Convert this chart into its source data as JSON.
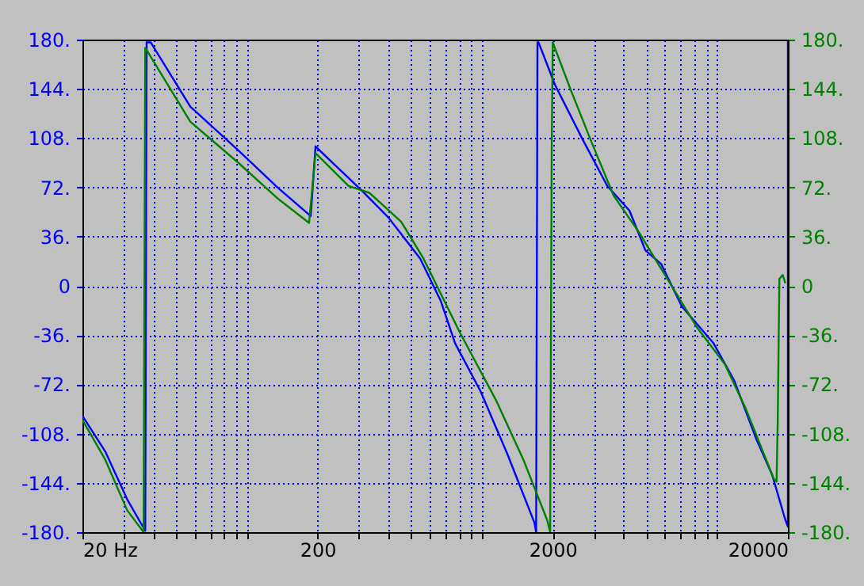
{
  "chart_data": {
    "type": "line",
    "xlim": [
      20,
      20000
    ],
    "xticks": [
      {
        "value": 20,
        "label": "20 Hz"
      },
      {
        "value": 30,
        "label": null
      },
      {
        "value": 40,
        "label": null
      },
      {
        "value": 50,
        "label": null
      },
      {
        "value": 60,
        "label": null
      },
      {
        "value": 70,
        "label": null
      },
      {
        "value": 80,
        "label": null
      },
      {
        "value": 90,
        "label": null
      },
      {
        "value": 100,
        "label": null
      },
      200,
      {
        "value": 300,
        "label": null
      },
      {
        "value": 400,
        "label": null
      },
      {
        "value": 500,
        "label": null
      },
      {
        "value": 600,
        "label": null
      },
      {
        "value": 700,
        "label": null
      },
      {
        "value": 800,
        "label": null
      },
      {
        "value": 900,
        "label": null
      },
      {
        "value": 1000,
        "label": null
      },
      2000,
      {
        "value": 3000,
        "label": null
      },
      {
        "value": 4000,
        "label": null
      },
      {
        "value": 5000,
        "label": null
      },
      {
        "value": 6000,
        "label": null
      },
      {
        "value": 7000,
        "label": null
      },
      {
        "value": 8000,
        "label": null
      },
      {
        "value": 9000,
        "label": null
      },
      {
        "value": 10000,
        "label": null
      },
      20000
    ],
    "log": "x",
    "ylim": [
      -180,
      180
    ],
    "yticks": [
      {
        "value": -180,
        "label": "-180."
      },
      {
        "value": -144,
        "label": "-144."
      },
      {
        "value": -108,
        "label": "-108."
      },
      {
        "value": -72,
        "label": "-72."
      },
      {
        "value": -36,
        "label": "-36."
      },
      {
        "value": 0,
        "label": "0"
      },
      {
        "value": 36,
        "label": "36."
      },
      {
        "value": 72,
        "label": "72."
      },
      {
        "value": 108,
        "label": "108."
      },
      {
        "value": 144,
        "label": "144."
      },
      {
        "value": 180,
        "label": "180."
      }
    ],
    "y2lim": [
      -180,
      180
    ],
    "y2ticks": [
      {
        "value": -180,
        "label": "-180."
      },
      {
        "value": -144,
        "label": "-144."
      },
      {
        "value": -108,
        "label": "-108."
      },
      {
        "value": -72,
        "label": "-72."
      },
      {
        "value": -36,
        "label": "-36."
      },
      {
        "value": 0,
        "label": "0"
      },
      {
        "value": 36,
        "label": "36."
      },
      {
        "value": 72,
        "label": "72."
      },
      {
        "value": 108,
        "label": "108."
      },
      {
        "value": 144,
        "label": "144."
      },
      {
        "value": 180,
        "label": "180."
      }
    ],
    "grid": true,
    "legend": false,
    "series": [
      {
        "color": "#0000ff",
        "x": [
          20,
          25,
          31,
          37,
          37.5,
          39,
          57.5,
          92,
          135,
          187,
          196,
          222,
          307,
          400,
          546,
          668,
          769,
          986,
          1283,
          1671,
          1700,
          1722,
          1740,
          2044,
          2661,
          3412,
          4240,
          4955,
          5782,
          7080,
          9660,
          11810,
          14680,
          17140,
          19420,
          20000,
          20000
        ],
        "values": [
          -95,
          -121,
          -156,
          -179,
          178,
          178,
          131,
          99,
          72,
          51,
          102,
          93,
          70,
          50,
          20,
          -11,
          -42,
          -77,
          -123,
          -173,
          -180,
          178,
          178,
          147,
          108,
          73,
          55,
          26,
          16,
          -15,
          -42,
          -69,
          -112,
          -138,
          -170,
          -176,
          180
        ]
      },
      {
        "color": "#008000",
        "axis": "y2",
        "x": [
          20,
          25,
          31,
          36.4,
          37,
          57.5,
          92,
          135,
          184,
          196,
          271,
          332,
          453,
          564,
          805,
          1151,
          1500,
          1892,
          1950,
          1980,
          2000,
          2388,
          2925,
          3630,
          4660,
          5435,
          8260,
          10770,
          13180,
          17140,
          17420,
          17900,
          18100,
          18400,
          19000,
          19500
        ],
        "values": [
          -98,
          -127,
          -164,
          -180,
          174,
          120,
          90,
          64,
          46,
          97,
          73,
          68,
          47,
          20,
          -34,
          -84,
          -127,
          -171,
          -180,
          100,
          178,
          143,
          105,
          66,
          39,
          20,
          -31,
          -57,
          -89,
          -138,
          -141,
          -143,
          -100,
          5,
          8,
          2
        ]
      }
    ]
  }
}
